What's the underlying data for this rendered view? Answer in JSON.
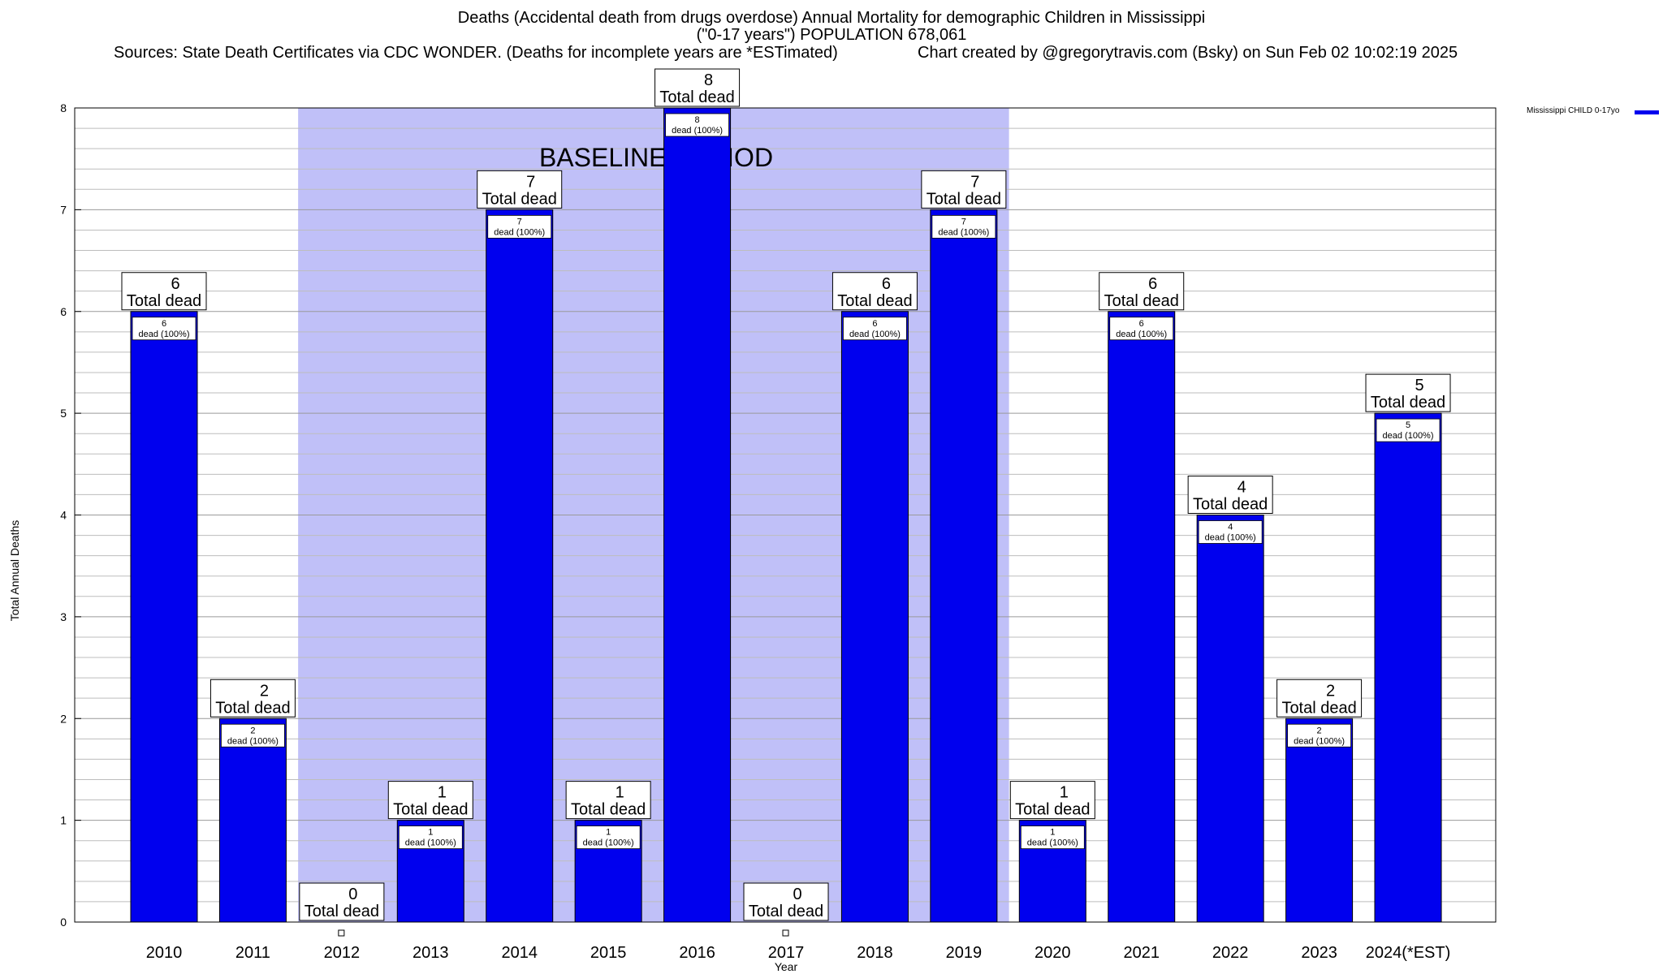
{
  "title": {
    "line1": "Deaths (Accidental death from drugs overdose) Annual Mortality for demographic Children in Mississippi",
    "line2": "(\"0-17 years\") POPULATION 678,061",
    "sources": "Sources: State Death Certificates via CDC WONDER. (Deaths for incomplete years are *ESTimated)",
    "credit": "Chart created by @gregorytravis.com (Bsky) on Sun Feb 02 10:02:19 2025"
  },
  "chart_data": {
    "type": "bar",
    "title": "Deaths (Accidental death from drugs overdose) Annual Mortality for demographic Children in Mississippi",
    "xlabel": "Year",
    "ylabel": "Total Annual Deaths",
    "ylim": [
      0,
      8
    ],
    "yticks": [
      "0",
      "1",
      "2",
      "3",
      "4",
      "5",
      "6",
      "7",
      "8"
    ],
    "grid": true,
    "legend_position": "top-right",
    "categories": [
      "2010",
      "2011",
      "2012",
      "2013",
      "2014",
      "2015",
      "2016",
      "2017",
      "2018",
      "2019",
      "2020",
      "2021",
      "2022",
      "2023",
      "2024(*EST)"
    ],
    "series": [
      {
        "name": "Mississippi CHILD 0-17yo",
        "color": "#0000ee",
        "values": [
          6,
          2,
          0,
          1,
          7,
          1,
          8,
          0,
          6,
          7,
          1,
          6,
          4,
          2,
          5
        ]
      }
    ],
    "total_label_suffix": "Total dead",
    "inner_label_suffix": "dead (100%)",
    "baseline_period": {
      "label": "BASELINE PERIOD",
      "start": "2012",
      "end": "2019",
      "color": "#c0c0f8"
    }
  }
}
